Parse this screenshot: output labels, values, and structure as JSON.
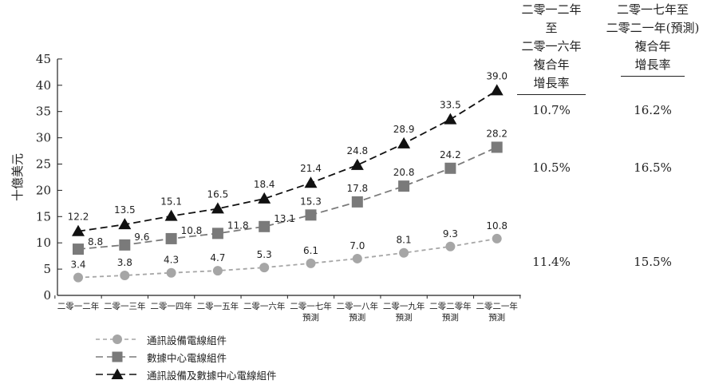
{
  "chart_data": {
    "type": "line",
    "ylabel": "十億美元",
    "ylim": [
      0,
      45
    ],
    "yticks": [
      0,
      5,
      10,
      15,
      20,
      25,
      30,
      35,
      40,
      45
    ],
    "categories": [
      [
        "二零一二年"
      ],
      [
        "二零一三年"
      ],
      [
        "二零一四年"
      ],
      [
        "二零一五年"
      ],
      [
        "二零一六年"
      ],
      [
        "二零一七年",
        "預測"
      ],
      [
        "二零一八年",
        "預測"
      ],
      [
        "二零一九年",
        "預測"
      ],
      [
        "二零二零年",
        "預測"
      ],
      [
        "二零二一年",
        "預測"
      ]
    ],
    "series": [
      {
        "name": "通訊設備電線組件",
        "marker": "circle",
        "dash": "5,4",
        "color": "#a6a6a6",
        "values": [
          3.4,
          3.8,
          4.3,
          4.7,
          5.3,
          6.1,
          7.0,
          8.1,
          9.3,
          10.8
        ]
      },
      {
        "name": "數據中心電線組件",
        "marker": "square",
        "dash": "9,5",
        "color": "#7a7a7a",
        "values": [
          8.8,
          9.6,
          10.8,
          11.8,
          13.1,
          15.3,
          17.8,
          20.8,
          24.2,
          28.2
        ]
      },
      {
        "name": "通訊設備及數據中心電線組件",
        "marker": "triangle",
        "dash": "9,5",
        "color": "#111111",
        "values": [
          12.2,
          13.5,
          15.1,
          16.5,
          18.4,
          21.4,
          24.8,
          28.9,
          33.5,
          39.0
        ]
      }
    ],
    "legend_position": "bottom-left"
  },
  "cagr": {
    "col1": {
      "header": [
        "二零一二年至",
        "二零一六年",
        "複合年",
        "增長率"
      ],
      "values": [
        "10.7%",
        "10.5%",
        "11.4%"
      ]
    },
    "col2": {
      "header": [
        "二零一七年至",
        "二零二一年(預測)",
        "複合年",
        "增長率"
      ],
      "values": [
        "16.2%",
        "16.5%",
        "15.5%"
      ]
    }
  }
}
